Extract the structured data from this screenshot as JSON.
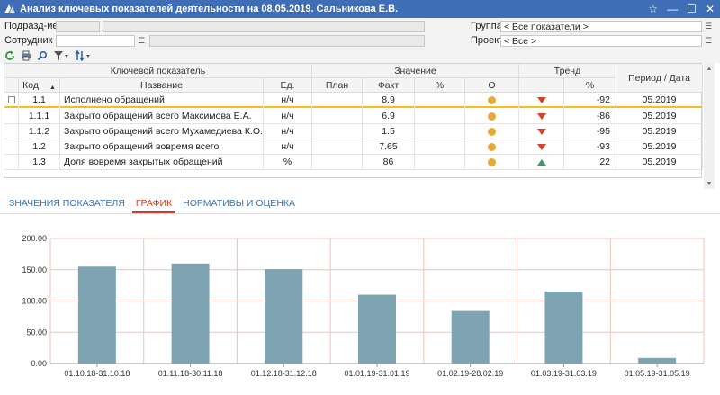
{
  "window": {
    "title": "Анализ ключевых показателей деятельности на 08.05.2019. Сальникова Е.В.",
    "colors": {
      "titlebar": "#3f6eb6",
      "accent_selected": "#f3c01f"
    }
  },
  "filters": {
    "division_label": "Подразд-ие",
    "employee_label": "Сотрудник",
    "group_label": "Группа",
    "group_value": "< Все показатели >",
    "project_label": "Проект",
    "project_value": "< Все >"
  },
  "grid": {
    "header_group_indicator": "Ключевой показатель",
    "header_group_value": "Значение",
    "header_group_trend": "Тренд",
    "header_period": "Период / Дата",
    "col_code": "Код",
    "col_name": "Название",
    "col_unit": "Ед.",
    "col_plan": "План",
    "col_fact": "Факт",
    "col_pct": "%",
    "col_o": "О",
    "col_trend_pct": "%",
    "rows": [
      {
        "code": "1.1",
        "name": "Исполнено обращений",
        "unit": "н/ч",
        "plan": "",
        "fact": "8.9",
        "pct": "",
        "status": "orange",
        "trend": "down",
        "trend_pct": "-92",
        "period": "05.2019"
      },
      {
        "code": "1.1.1",
        "name": "Закрыто обращений всего Максимова Е.А.",
        "unit": "н/ч",
        "plan": "",
        "fact": "6.9",
        "pct": "",
        "status": "orange",
        "trend": "down",
        "trend_pct": "-86",
        "period": "05.2019"
      },
      {
        "code": "1.1.2",
        "name": "Закрыто обращений всего Мухамедиева К.О.",
        "unit": "н/ч",
        "plan": "",
        "fact": "1.5",
        "pct": "",
        "status": "orange",
        "trend": "down",
        "trend_pct": "-95",
        "period": "05.2019"
      },
      {
        "code": "1.2",
        "name": "Закрыто обращений вовремя всего",
        "unit": "н/ч",
        "plan": "",
        "fact": "7.65",
        "pct": "",
        "status": "orange",
        "trend": "down",
        "trend_pct": "-93",
        "period": "05.2019"
      },
      {
        "code": "1.3",
        "name": "Доля вовремя закрытых обращений",
        "unit": "%",
        "plan": "",
        "fact": "86",
        "pct": "",
        "status": "orange",
        "trend": "up",
        "trend_pct": "22",
        "period": "05.2019"
      }
    ]
  },
  "tabs": [
    {
      "label": "ЗНАЧЕНИЯ ПОКАЗАТЕЛЯ",
      "active": false
    },
    {
      "label": "ГРАФИК",
      "active": true
    },
    {
      "label": "НОРМАТИВЫ И ОЦЕНКА",
      "active": false
    }
  ],
  "chart_data": {
    "type": "bar",
    "categories": [
      "01.10.18-31.10.18",
      "01.11.18-30.11.18",
      "01.12.18-31.12.18",
      "01.01.19-31.01.19",
      "01.02.19-28.02.19",
      "01.03.19-31.03.19",
      "01.05.19-31.05.19"
    ],
    "values": [
      155,
      160,
      151,
      110,
      84,
      115,
      8.9
    ],
    "ylim": [
      0,
      200
    ],
    "yticks": [
      "0.00",
      "50.00",
      "100.00",
      "150.00",
      "200.00"
    ],
    "bar_color": "#7ea3b3",
    "grid": true
  }
}
